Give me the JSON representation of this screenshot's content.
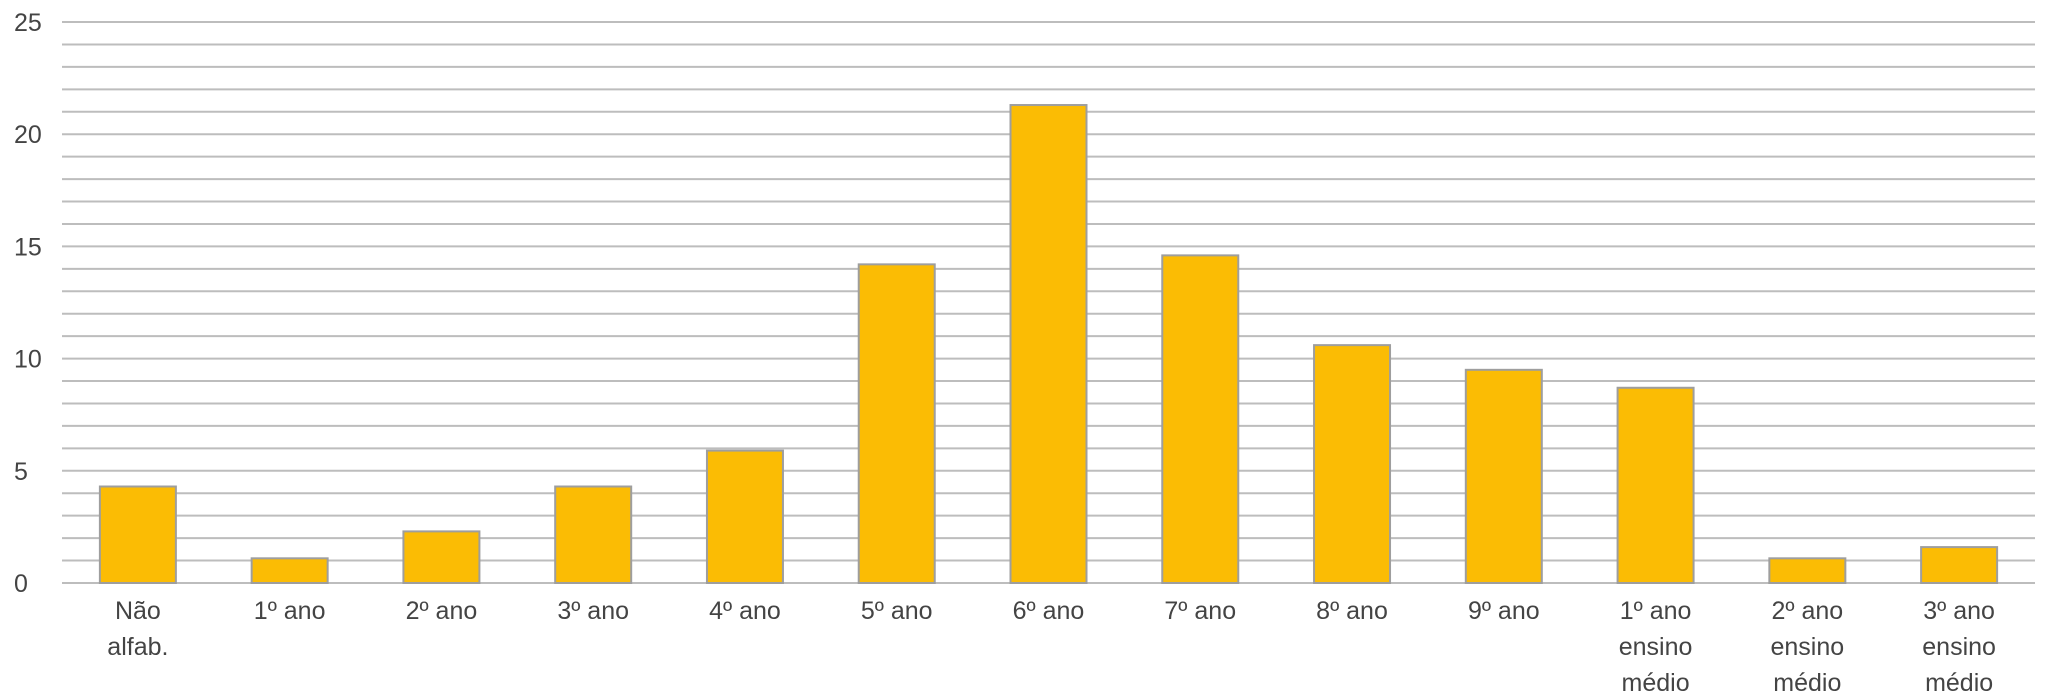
{
  "chart_data": {
    "type": "bar",
    "title": "",
    "xlabel": "",
    "ylabel": "",
    "ylim": [
      0,
      25
    ],
    "yticks": [
      "0",
      "5",
      "10",
      "15",
      "20",
      "25"
    ],
    "minor_gridline_step": 1,
    "grid": true,
    "legend": "none",
    "categories": [
      [
        "Não",
        "alfab."
      ],
      [
        "1º ano"
      ],
      [
        "2º ano"
      ],
      [
        "3º ano"
      ],
      [
        "4º ano"
      ],
      [
        "5º ano"
      ],
      [
        "6º ano"
      ],
      [
        "7º ano"
      ],
      [
        "8º ano"
      ],
      [
        "9º ano"
      ],
      [
        "1º ano",
        "ensino",
        "médio"
      ],
      [
        "2º ano",
        "ensino",
        "médio"
      ],
      [
        "3º ano",
        "ensino",
        "médio"
      ]
    ],
    "values": [
      4.3,
      1.1,
      2.3,
      4.3,
      5.9,
      14.2,
      21.3,
      14.6,
      10.6,
      9.5,
      8.7,
      1.1,
      1.6
    ],
    "colors": {
      "bar": "#FBBC04",
      "bar_stroke": "#9E9E9E",
      "gridline": "#BDBDBD",
      "axis_text": "#444444"
    }
  }
}
